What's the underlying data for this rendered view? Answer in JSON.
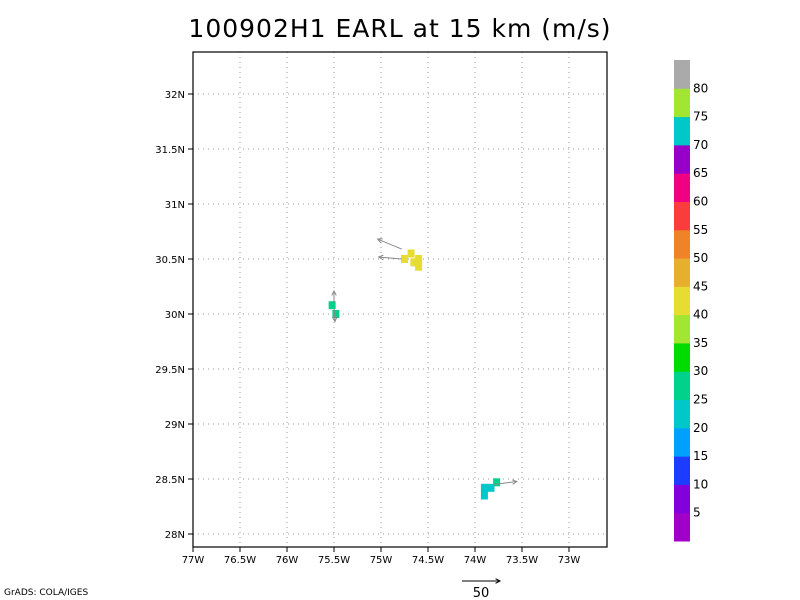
{
  "title": "100902H1 EARL at 15 km (m/s)",
  "credit": "GrADS: COLA/IGES",
  "chart_data": {
    "type": "heatmap",
    "title": "100902H1 EARL at 15 km (m/s)",
    "x_ticks": [
      {
        "value": -77,
        "label": "77W"
      },
      {
        "value": -76.5,
        "label": "76.5W"
      },
      {
        "value": -76,
        "label": "76W"
      },
      {
        "value": -75.5,
        "label": "75.5W"
      },
      {
        "value": -75,
        "label": "75W"
      },
      {
        "value": -74.5,
        "label": "74.5W"
      },
      {
        "value": -74,
        "label": "74W"
      },
      {
        "value": -73.5,
        "label": "73.5W"
      },
      {
        "value": -73,
        "label": "73W"
      }
    ],
    "y_ticks": [
      {
        "value": 28,
        "label": "28N"
      },
      {
        "value": 28.5,
        "label": "28.5N"
      },
      {
        "value": 29,
        "label": "29N"
      },
      {
        "value": 29.5,
        "label": "29.5N"
      },
      {
        "value": 30,
        "label": "30N"
      },
      {
        "value": 30.5,
        "label": "30.5N"
      },
      {
        "value": 31,
        "label": "31N"
      },
      {
        "value": 31.5,
        "label": "31.5N"
      },
      {
        "value": 32,
        "label": "32N"
      }
    ],
    "xlim": [
      -77,
      -72.6
    ],
    "ylim": [
      27.9,
      32.4
    ],
    "grid": true,
    "cells": [
      {
        "lon": -74.75,
        "lat": 30.5,
        "color": "#e6dc32"
      },
      {
        "lon": -74.68,
        "lat": 30.55,
        "color": "#e6dc32"
      },
      {
        "lon": -74.65,
        "lat": 30.47,
        "color": "#e6dc32"
      },
      {
        "lon": -74.6,
        "lat": 30.5,
        "color": "#e6dc32"
      },
      {
        "lon": -74.6,
        "lat": 30.43,
        "color": "#e6dc32"
      },
      {
        "lon": -75.52,
        "lat": 30.08,
        "color": "#00d28c"
      },
      {
        "lon": -75.48,
        "lat": 30.0,
        "color": "#00d28c"
      },
      {
        "lon": -73.9,
        "lat": 28.42,
        "color": "#00c8c8"
      },
      {
        "lon": -73.9,
        "lat": 28.35,
        "color": "#00c8c8"
      },
      {
        "lon": -73.83,
        "lat": 28.42,
        "color": "#00c8c8"
      },
      {
        "lon": -73.77,
        "lat": 28.47,
        "color": "#00d28c"
      }
    ],
    "vectors": [
      {
        "lon": -74.78,
        "lat": 30.59,
        "u": -24,
        "v": 10
      },
      {
        "lon": -74.78,
        "lat": 30.5,
        "u": -23,
        "v": 2
      },
      {
        "lon": -75.5,
        "lat": 30.1,
        "u": 0,
        "v": 12
      },
      {
        "lon": -75.5,
        "lat": 30.05,
        "u": 1,
        "v": -13
      },
      {
        "lon": -73.8,
        "lat": 28.45,
        "u": 23,
        "v": 3
      }
    ],
    "colorbar": {
      "labels": [
        "5",
        "10",
        "15",
        "20",
        "25",
        "30",
        "35",
        "40",
        "45",
        "50",
        "55",
        "60",
        "65",
        "70",
        "75",
        "80"
      ],
      "colors": [
        "#a000c8",
        "#8200dc",
        "#1e3cff",
        "#00a0ff",
        "#00c8c8",
        "#00d28c",
        "#00dc00",
        "#a0e632",
        "#e6dc32",
        "#e6af2d",
        "#f08228",
        "#fa3c3c",
        "#f00082",
        "#9600c8",
        "#00c8c8",
        "#a0e632",
        "#aaaaaa"
      ]
    },
    "reference_vector": {
      "label": "50",
      "magnitude": 50
    }
  }
}
